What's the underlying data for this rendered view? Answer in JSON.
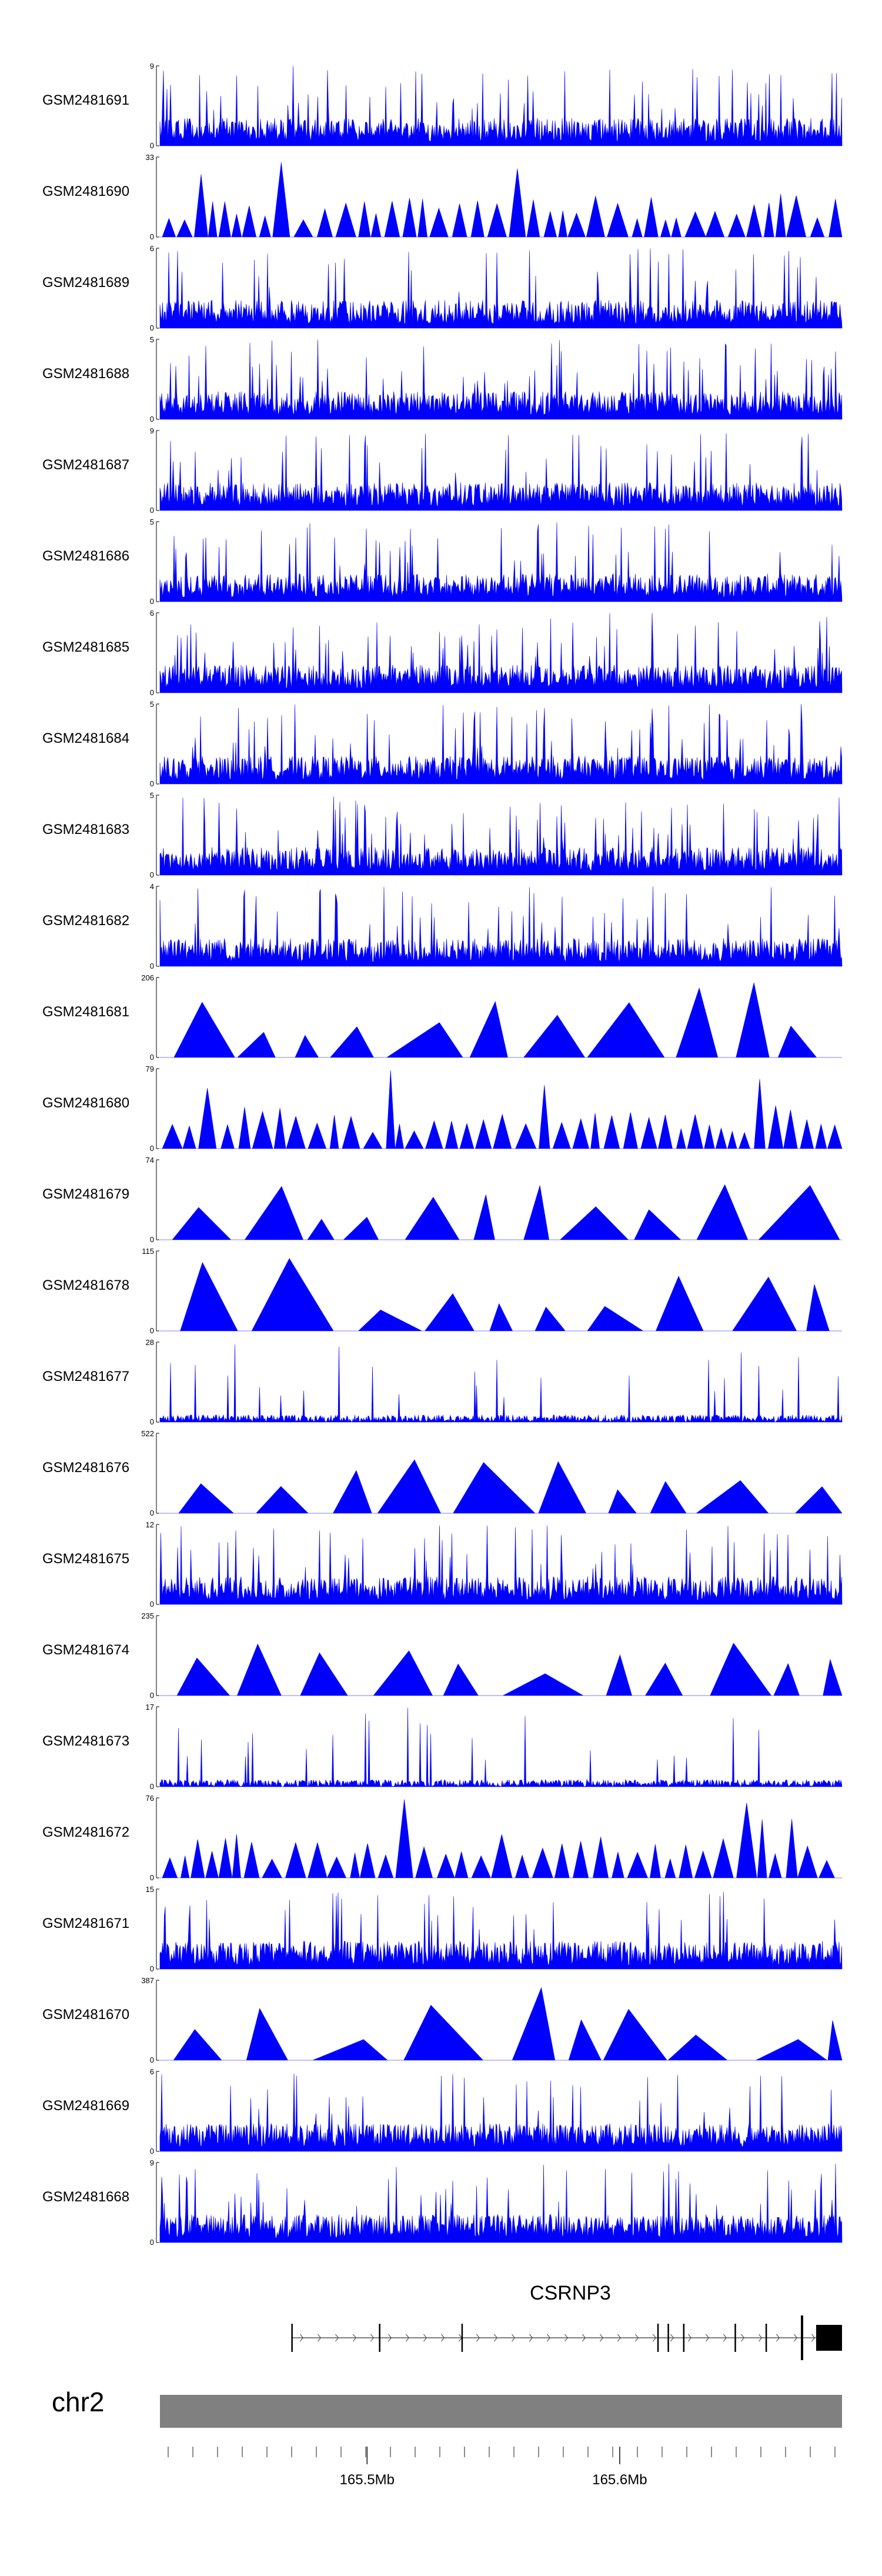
{
  "chart_data": {
    "type": "area",
    "title": "",
    "track_color": "#0000ff",
    "chromosome": "chr2",
    "x_axis": {
      "ticks": [
        {
          "pos_mb": 165.5,
          "label": "165.5Mb"
        },
        {
          "pos_mb": 165.6,
          "label": "165.6Mb"
        }
      ],
      "range_mb": [
        165.418,
        165.688
      ]
    },
    "gene": {
      "name": "CSRNP3",
      "strand": "+",
      "start_mb": 165.47,
      "end_mb": 165.688
    },
    "tracks": [
      {
        "name": "GSM2481691",
        "ymin": 0,
        "ymax": 9,
        "style": "dense",
        "seed": 11
      },
      {
        "name": "GSM2481690",
        "ymin": 0,
        "ymax": 33,
        "style": "spiky",
        "seed": 12
      },
      {
        "name": "GSM2481689",
        "ymin": 0,
        "ymax": 6,
        "style": "dense",
        "seed": 13
      },
      {
        "name": "GSM2481688",
        "ymin": 0,
        "ymax": 5,
        "style": "dense",
        "seed": 14
      },
      {
        "name": "GSM2481687",
        "ymin": 0,
        "ymax": 9,
        "style": "dense",
        "seed": 15
      },
      {
        "name": "GSM2481686",
        "ymin": 0,
        "ymax": 5,
        "style": "dense",
        "seed": 16
      },
      {
        "name": "GSM2481685",
        "ymin": 0,
        "ymax": 6,
        "style": "dense",
        "seed": 17
      },
      {
        "name": "GSM2481684",
        "ymin": 0,
        "ymax": 5,
        "style": "dense",
        "seed": 18
      },
      {
        "name": "GSM2481683",
        "ymin": 0,
        "ymax": 5,
        "style": "dense",
        "seed": 19
      },
      {
        "name": "GSM2481682",
        "ymin": 0,
        "ymax": 4,
        "style": "dense",
        "seed": 20
      },
      {
        "name": "GSM2481681",
        "ymin": 0,
        "ymax": 206,
        "style": "sparse",
        "seed": 21
      },
      {
        "name": "GSM2481680",
        "ymin": 0,
        "ymax": 79,
        "style": "spiky",
        "seed": 22
      },
      {
        "name": "GSM2481679",
        "ymin": 0,
        "ymax": 74,
        "style": "sparse",
        "seed": 23
      },
      {
        "name": "GSM2481678",
        "ymin": 0,
        "ymax": 115,
        "style": "sparse",
        "seed": 24
      },
      {
        "name": "GSM2481677",
        "ymin": 0,
        "ymax": 28,
        "style": "low",
        "seed": 25
      },
      {
        "name": "GSM2481676",
        "ymin": 0,
        "ymax": 522,
        "style": "sparse",
        "seed": 26
      },
      {
        "name": "GSM2481675",
        "ymin": 0,
        "ymax": 12,
        "style": "dense",
        "seed": 27
      },
      {
        "name": "GSM2481674",
        "ymin": 0,
        "ymax": 235,
        "style": "sparse",
        "seed": 28
      },
      {
        "name": "GSM2481673",
        "ymin": 0,
        "ymax": 17,
        "style": "low",
        "seed": 29
      },
      {
        "name": "GSM2481672",
        "ymin": 0,
        "ymax": 76,
        "style": "spiky",
        "seed": 30
      },
      {
        "name": "GSM2481671",
        "ymin": 0,
        "ymax": 15,
        "style": "dense",
        "seed": 31
      },
      {
        "name": "GSM2481670",
        "ymin": 0,
        "ymax": 387,
        "style": "sparse",
        "seed": 32
      },
      {
        "name": "GSM2481669",
        "ymin": 0,
        "ymax": 6,
        "style": "dense",
        "seed": 33
      },
      {
        "name": "GSM2481668",
        "ymin": 0,
        "ymax": 9,
        "style": "dense",
        "seed": 34
      }
    ]
  }
}
